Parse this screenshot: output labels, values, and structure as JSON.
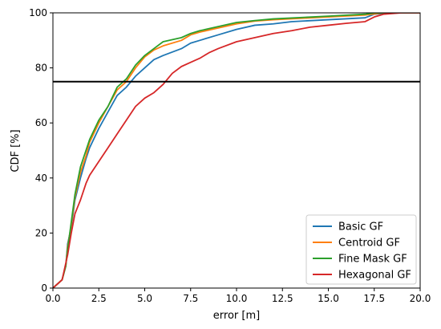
{
  "chart_data": {
    "type": "line",
    "xlabel": "error [m]",
    "ylabel": "CDF [%]",
    "xlim": [
      0,
      20
    ],
    "ylim": [
      0,
      100
    ],
    "x_ticks": [
      "0.0",
      "2.5",
      "5.0",
      "7.5",
      "10.0",
      "12.5",
      "15.0",
      "17.5",
      "20.0"
    ],
    "y_ticks": [
      "0",
      "20",
      "40",
      "60",
      "80",
      "100"
    ],
    "grid": false,
    "legend_position": "lower-right",
    "reference_line": {
      "y": 75,
      "color": "#000000"
    },
    "series": [
      {
        "name": "Basic GF",
        "color": "#1f77b4",
        "points": [
          [
            0,
            0
          ],
          [
            0.5,
            3
          ],
          [
            0.7,
            8
          ],
          [
            0.8,
            16
          ],
          [
            1.0,
            22
          ],
          [
            1.2,
            32
          ],
          [
            1.5,
            40
          ],
          [
            1.8,
            47
          ],
          [
            2.0,
            51
          ],
          [
            2.5,
            58
          ],
          [
            3.0,
            64
          ],
          [
            3.5,
            70
          ],
          [
            4.0,
            73
          ],
          [
            4.5,
            77
          ],
          [
            5.0,
            80
          ],
          [
            5.5,
            83
          ],
          [
            6.0,
            84.5
          ],
          [
            7.0,
            87
          ],
          [
            7.5,
            89
          ],
          [
            8.0,
            90
          ],
          [
            9.0,
            92
          ],
          [
            10.0,
            94
          ],
          [
            11.0,
            95.5
          ],
          [
            12.0,
            96
          ],
          [
            13.0,
            96.8
          ],
          [
            15.0,
            97.5
          ],
          [
            17.0,
            98.2
          ],
          [
            17.5,
            99.5
          ],
          [
            18.5,
            100
          ],
          [
            20.0,
            100
          ]
        ]
      },
      {
        "name": "Centroid GF",
        "color": "#ff7f0e",
        "points": [
          [
            0,
            0
          ],
          [
            0.5,
            3
          ],
          [
            0.7,
            8
          ],
          [
            0.8,
            15
          ],
          [
            1.0,
            23
          ],
          [
            1.2,
            33
          ],
          [
            1.5,
            42
          ],
          [
            1.8,
            48
          ],
          [
            2.0,
            53
          ],
          [
            2.5,
            60
          ],
          [
            3.0,
            66
          ],
          [
            3.5,
            72
          ],
          [
            4.0,
            75
          ],
          [
            4.5,
            80
          ],
          [
            5.0,
            84
          ],
          [
            5.5,
            86.5
          ],
          [
            6.0,
            88
          ],
          [
            7.0,
            90
          ],
          [
            7.5,
            92
          ],
          [
            8.0,
            93
          ],
          [
            9.0,
            94.5
          ],
          [
            10.0,
            96
          ],
          [
            11.0,
            97
          ],
          [
            12.0,
            97.5
          ],
          [
            15.0,
            98.5
          ],
          [
            17.0,
            99.2
          ],
          [
            18.0,
            100
          ],
          [
            20.0,
            100
          ]
        ]
      },
      {
        "name": "Fine Mask GF",
        "color": "#2ca02c",
        "points": [
          [
            0,
            0
          ],
          [
            0.5,
            3
          ],
          [
            0.7,
            8
          ],
          [
            0.8,
            14
          ],
          [
            1.0,
            24
          ],
          [
            1.2,
            34
          ],
          [
            1.5,
            44
          ],
          [
            1.8,
            50
          ],
          [
            2.0,
            54
          ],
          [
            2.5,
            61
          ],
          [
            3.0,
            66
          ],
          [
            3.5,
            73
          ],
          [
            4.0,
            76
          ],
          [
            4.5,
            81
          ],
          [
            5.0,
            84.5
          ],
          [
            5.5,
            87
          ],
          [
            6.0,
            89.5
          ],
          [
            7.0,
            91
          ],
          [
            7.5,
            92.5
          ],
          [
            8.0,
            93.5
          ],
          [
            9.0,
            95
          ],
          [
            10.0,
            96.5
          ],
          [
            11.0,
            97.2
          ],
          [
            12.0,
            97.8
          ],
          [
            15.0,
            98.8
          ],
          [
            17.0,
            99.5
          ],
          [
            17.5,
            100
          ],
          [
            20.0,
            100
          ]
        ]
      },
      {
        "name": "Hexagonal GF",
        "color": "#d62728",
        "points": [
          [
            0,
            0
          ],
          [
            0.5,
            3
          ],
          [
            0.6,
            6
          ],
          [
            0.8,
            12
          ],
          [
            1.0,
            20
          ],
          [
            1.2,
            27
          ],
          [
            1.5,
            32
          ],
          [
            1.8,
            38
          ],
          [
            2.0,
            41
          ],
          [
            2.5,
            46
          ],
          [
            3.0,
            51
          ],
          [
            3.5,
            56
          ],
          [
            4.0,
            61
          ],
          [
            4.5,
            66
          ],
          [
            5.0,
            69
          ],
          [
            5.5,
            71
          ],
          [
            6.0,
            74
          ],
          [
            6.5,
            78
          ],
          [
            7.0,
            80.5
          ],
          [
            7.5,
            82
          ],
          [
            8.0,
            83.5
          ],
          [
            8.5,
            85.5
          ],
          [
            9.0,
            87
          ],
          [
            10.0,
            89.5
          ],
          [
            11.0,
            91
          ],
          [
            12.0,
            92.5
          ],
          [
            13.0,
            93.5
          ],
          [
            14.0,
            94.8
          ],
          [
            15.0,
            95.5
          ],
          [
            16.0,
            96.2
          ],
          [
            17.0,
            96.8
          ],
          [
            17.5,
            98.5
          ],
          [
            18.0,
            99.5
          ],
          [
            19.0,
            100
          ],
          [
            20.0,
            100
          ]
        ]
      }
    ]
  }
}
